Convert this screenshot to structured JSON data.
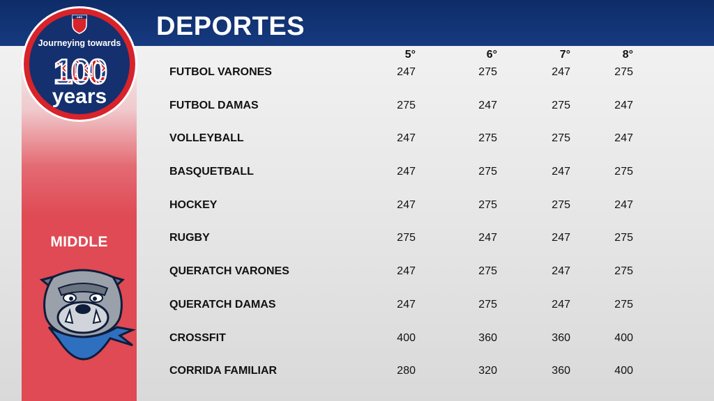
{
  "header": {
    "title": "DEPORTES"
  },
  "badge": {
    "top_text": "ABS",
    "line1": "Journeying towards",
    "number": "100",
    "line2": "years"
  },
  "sidebar": {
    "label": "MIDDLE"
  },
  "table": {
    "grades": [
      "5°",
      "6°",
      "7°",
      "8°"
    ],
    "rows": [
      {
        "sport": "FUTBOL VARONES",
        "values": [
          "247",
          "275",
          "247",
          "275"
        ]
      },
      {
        "sport": "FUTBOL DAMAS",
        "values": [
          "275",
          "247",
          "275",
          "247"
        ]
      },
      {
        "sport": "VOLLEYBALL",
        "values": [
          "247",
          "275",
          "275",
          "247"
        ]
      },
      {
        "sport": "BASQUETBALL",
        "values": [
          "247",
          "275",
          "247",
          "275"
        ]
      },
      {
        "sport": "HOCKEY",
        "values": [
          "247",
          "275",
          "275",
          "247"
        ]
      },
      {
        "sport": "RUGBY",
        "values": [
          "275",
          "247",
          "247",
          "275"
        ]
      },
      {
        "sport": "QUERATCH VARONES",
        "values": [
          "247",
          "275",
          "247",
          "275"
        ]
      },
      {
        "sport": "QUERATCH DAMAS",
        "values": [
          "247",
          "275",
          "247",
          "275"
        ]
      },
      {
        "sport": "CROSSFIT",
        "values": [
          "400",
          "360",
          "360",
          "400"
        ]
      },
      {
        "sport": "CORRIDA FAMILIAR",
        "values": [
          "280",
          "320",
          "360",
          "400"
        ]
      }
    ]
  },
  "colors": {
    "header_blue": "#0e2c68",
    "accent_red": "#df4a54",
    "badge_red": "#d8232a"
  }
}
